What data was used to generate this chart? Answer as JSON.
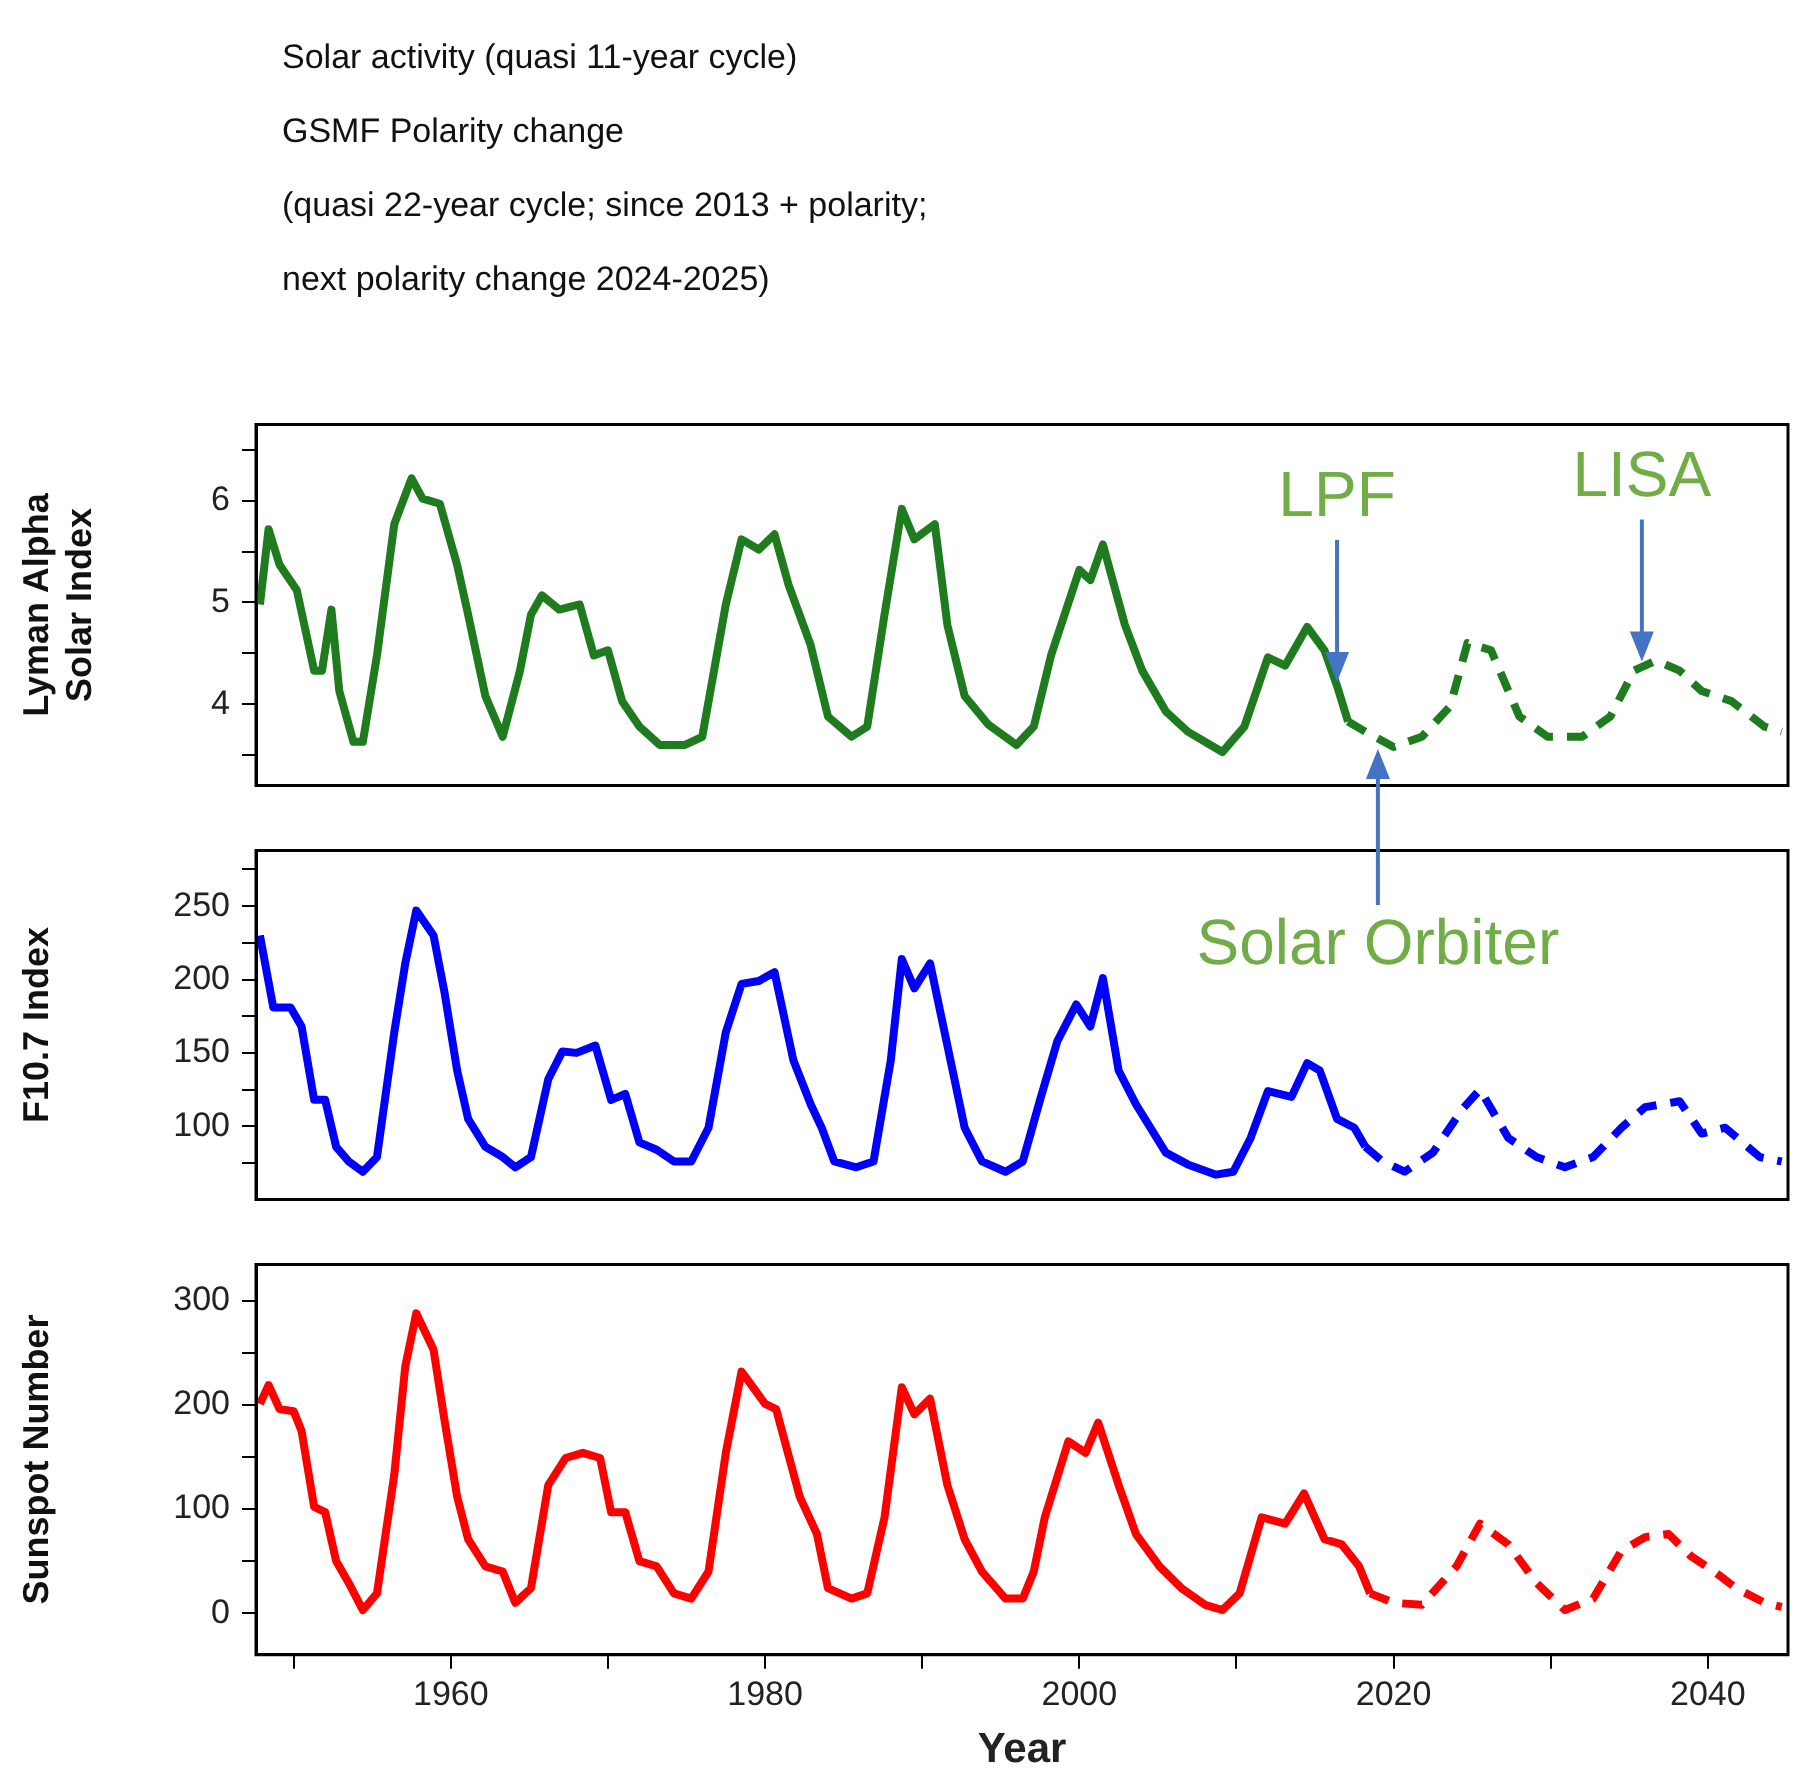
{
  "chart_data": [
    {
      "type": "line",
      "title": "Solar activity (quasi 11-year cycle)",
      "subtitle": "GSMF Polarity change\n(quasi 22-year cycle; since 2013 + polarity;\nnext polarity change 2024-2025)",
      "ylabel": "Lyman Alpha Solar Index",
      "xlim": [
        1947.6,
        2045.1
      ],
      "ylim": [
        3.2,
        6.75
      ],
      "yticks": [
        {
          "value": 3.5,
          "label": null
        },
        4,
        {
          "value": 4.5,
          "label": null
        },
        5,
        {
          "value": 5.5,
          "label": null
        },
        6,
        {
          "value": 6.5,
          "label": null
        }
      ],
      "tick_labels": "y",
      "marker": "none",
      "annotations": [
        {
          "text": "LPF",
          "x": 2016.4,
          "y": 4.18
        },
        {
          "text": "LISA",
          "x": 2035.8,
          "y": 4.38
        },
        {
          "text": "Solar Orbiter",
          "x": 2019.0,
          "y": 3.6
        }
      ],
      "series": [
        {
          "color": "#1e7b1e",
          "line_style": "solid",
          "x": [
            1947.85,
            1948.4,
            1949.1,
            1950.2,
            1951.3,
            1951.8,
            1952.4,
            1952.9,
            1953.8,
            1954.4,
            1955.3,
            1956.4,
            1957.5,
            1958.2,
            1959.3,
            1960.4,
            1961.1,
            1962.2,
            1963.3,
            1964.4,
            1965.1,
            1965.8,
            1966.9,
            1968.2,
            1969.1,
            1970.0,
            1970.9,
            1972.0,
            1973.3,
            1974.9,
            1976.0,
            1977.5,
            1978.5,
            1979.6,
            1980.6,
            1981.5,
            1982.9,
            1984.0,
            1985.5,
            1986.5,
            1987.6,
            1988.7,
            1989.5,
            1990.8,
            1991.6,
            1992.7,
            1994.2,
            1996.0,
            1997.1,
            1998.2,
            2000.0,
            2000.7,
            2001.5,
            2002.9,
            2004.0,
            2005.5,
            2006.9,
            2009.1,
            2010.5,
            2012.0,
            2013.1,
            2014.5,
            2015.6,
            2016.4,
            2017.1
          ],
          "values": [
            4.98,
            5.72,
            5.37,
            5.12,
            4.33,
            4.33,
            4.93,
            4.13,
            3.63,
            3.63,
            4.48,
            5.77,
            6.22,
            6.02,
            5.97,
            5.37,
            4.88,
            4.08,
            3.68,
            4.33,
            4.88,
            5.07,
            4.93,
            4.98,
            4.48,
            4.53,
            4.03,
            3.78,
            3.6,
            3.6,
            3.68,
            4.98,
            5.62,
            5.52,
            5.67,
            5.17,
            4.58,
            3.88,
            3.68,
            3.78,
            4.88,
            5.92,
            5.62,
            5.77,
            4.78,
            4.08,
            3.8,
            3.6,
            3.78,
            4.48,
            5.32,
            5.22,
            5.57,
            4.78,
            4.33,
            3.93,
            3.73,
            3.53,
            3.78,
            4.46,
            4.38,
            4.76,
            4.53,
            4.18,
            3.83
          ]
        },
        {
          "color": "#1e7b1e",
          "line_style": "dashed",
          "x": [
            2017.1,
            2018.2,
            2020.0,
            2021.8,
            2023.6,
            2024.7,
            2026.2,
            2028.0,
            2029.8,
            2032.0,
            2033.8,
            2035.3,
            2036.7,
            2038.2,
            2039.6,
            2041.5,
            2043.6,
            2044.7
          ],
          "values": [
            3.83,
            3.73,
            3.58,
            3.68,
            3.98,
            4.6,
            4.53,
            3.88,
            3.68,
            3.68,
            3.88,
            4.33,
            4.43,
            4.33,
            4.13,
            4.03,
            3.78,
            3.73
          ]
        }
      ]
    },
    {
      "type": "line",
      "ylabel": "F10.7 Index",
      "xlim": [
        1947.6,
        2045.1
      ],
      "ylim": [
        50,
        288
      ],
      "yticks": [
        {
          "value": 75,
          "label": null
        },
        100,
        {
          "value": 125,
          "label": null
        },
        150,
        {
          "value": 175,
          "label": null
        },
        200,
        {
          "value": 225,
          "label": null
        },
        250,
        {
          "value": 275,
          "label": null
        }
      ],
      "tick_labels": "y",
      "marker": "none",
      "series": [
        {
          "color": "#0000ff",
          "line_style": "solid",
          "x": [
            1947.85,
            1948.7,
            1949.8,
            1950.5,
            1951.3,
            1952.0,
            1952.7,
            1953.5,
            1954.4,
            1955.3,
            1956.4,
            1957.1,
            1957.8,
            1958.9,
            1959.6,
            1960.4,
            1961.1,
            1962.2,
            1963.3,
            1964.1,
            1965.1,
            1966.2,
            1967.1,
            1968.0,
            1969.2,
            1970.2,
            1971.1,
            1972.0,
            1973.1,
            1974.2,
            1975.3,
            1976.4,
            1977.5,
            1978.5,
            1979.6,
            1980.6,
            1981.8,
            1982.9,
            1983.6,
            1984.4,
            1985.8,
            1986.9,
            1988.0,
            1988.7,
            1989.5,
            1990.5,
            1991.6,
            1992.7,
            1993.8,
            1995.3,
            1996.4,
            1997.5,
            1998.6,
            1999.8,
            2000.7,
            2001.5,
            2002.5,
            2003.6,
            2005.5,
            2006.9,
            2008.7,
            2009.8,
            2010.9,
            2012.0,
            2013.5,
            2014.5,
            2015.3,
            2016.4,
            2017.5,
            2018.2
          ],
          "values": [
            230,
            181,
            181,
            168,
            118,
            118,
            86,
            76,
            69,
            79,
            164,
            211,
            247,
            230,
            191,
            138,
            105,
            86,
            79,
            72,
            79,
            132,
            151,
            150,
            155,
            118,
            122,
            89,
            84,
            76,
            76,
            99,
            164,
            197,
            199,
            205,
            145,
            115,
            99,
            76,
            72,
            76,
            145,
            214,
            194,
            211,
            155,
            99,
            76,
            69,
            76,
            118,
            158,
            183,
            168,
            201,
            138,
            115,
            82,
            74,
            67,
            69,
            92,
            124,
            120,
            143,
            138,
            105,
            99,
            86
          ]
        },
        {
          "color": "#0000ff",
          "line_style": "dashed",
          "x": [
            2018.2,
            2019.3,
            2020.7,
            2022.5,
            2024.4,
            2025.5,
            2027.3,
            2029.1,
            2030.9,
            2032.7,
            2034.5,
            2036.0,
            2038.2,
            2039.6,
            2041.1,
            2043.3,
            2044.7
          ],
          "values": [
            86,
            76,
            69,
            82,
            112,
            125,
            92,
            79,
            72,
            79,
            99,
            113,
            117,
            95,
            99,
            79,
            76
          ]
        }
      ]
    },
    {
      "type": "line",
      "ylabel": "Sunspot Number",
      "xlabel": "Year",
      "xlim": [
        1947.6,
        2045.1
      ],
      "xticks": [
        {
          "value": 1950,
          "label": null
        },
        1960,
        {
          "value": 1970,
          "label": null
        },
        1980,
        {
          "value": 1990,
          "label": null
        },
        2000,
        {
          "value": 2010,
          "label": null
        },
        2020,
        {
          "value": 2030,
          "label": null
        },
        2040
      ],
      "ylim": [
        -40,
        335
      ],
      "yticks": [
        0,
        {
          "value": 50,
          "label": null
        },
        100,
        {
          "value": 150,
          "label": null
        },
        200,
        {
          "value": 250,
          "label": null
        },
        300
      ],
      "marker": "none",
      "series": [
        {
          "color": "#ff0000",
          "line_style": "solid",
          "x": [
            1947.85,
            1948.4,
            1949.1,
            1950.0,
            1950.5,
            1951.3,
            1952.0,
            1952.7,
            1953.5,
            1954.4,
            1955.3,
            1956.4,
            1957.1,
            1957.8,
            1958.9,
            1959.6,
            1960.4,
            1961.1,
            1962.2,
            1963.3,
            1964.1,
            1965.1,
            1966.2,
            1967.3,
            1968.4,
            1969.5,
            1970.2,
            1971.1,
            1972.0,
            1973.1,
            1974.2,
            1975.3,
            1976.4,
            1977.5,
            1978.5,
            1980.0,
            1980.7,
            1982.2,
            1983.3,
            1984.0,
            1985.5,
            1986.5,
            1987.6,
            1988.7,
            1989.5,
            1990.5,
            1991.6,
            1992.7,
            1993.8,
            1995.3,
            1996.4,
            1997.1,
            1997.8,
            1999.3,
            2000.4,
            2001.2,
            2002.5,
            2003.6,
            2005.1,
            2006.5,
            2008.0,
            2009.1,
            2010.2,
            2011.6,
            2013.1,
            2014.3,
            2015.6,
            2016.7,
            2017.8,
            2018.5
          ],
          "values": [
            201,
            219,
            196,
            194,
            175,
            102,
            97,
            50,
            29,
            3,
            19,
            133,
            237,
            288,
            253,
            185,
            112,
            71,
            45,
            40,
            10,
            24,
            123,
            149,
            154,
            149,
            97,
            97,
            50,
            45,
            19,
            14,
            40,
            154,
            232,
            201,
            196,
            112,
            76,
            24,
            14,
            19,
            92,
            217,
            191,
            206,
            123,
            71,
            40,
            14,
            14,
            40,
            92,
            165,
            154,
            183,
            123,
            76,
            45,
            24,
            8,
            3,
            19,
            92,
            86,
            115,
            71,
            66,
            45,
            19
          ]
        },
        {
          "color": "#ff0000",
          "line_style": "dashed",
          "x": [
            2018.5,
            2020.0,
            2021.8,
            2024.0,
            2025.5,
            2027.3,
            2029.1,
            2030.9,
            2032.7,
            2034.5,
            2036.0,
            2037.5,
            2038.9,
            2040.4,
            2041.8,
            2043.6,
            2044.7
          ],
          "values": [
            19,
            10,
            8,
            45,
            86,
            66,
            29,
            3,
            14,
            60,
            73,
            76,
            55,
            40,
            24,
            10,
            6
          ]
        }
      ]
    }
  ]
}
